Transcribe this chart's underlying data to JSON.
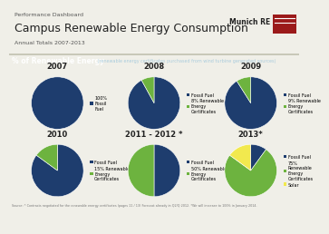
{
  "title_small": "Performance Dashboard",
  "title_main": "Campus Renewable Energy Consumption",
  "title_sub": "Annual Totals 2007-2013",
  "section_label": "% of Renewable Energy",
  "section_sublabel": " (renewable energy certificates purchased from wind turbine generated sources)",
  "background": "#f0efe8",
  "header_bg": "#f0efe8",
  "section_bar_color": "#1e3d6e",
  "charts": [
    {
      "year": "2007",
      "slices": [
        100,
        0,
        0
      ],
      "colors": [
        "#1e3d6e",
        "#6db33f",
        "#f2e94e"
      ],
      "rec_label": "100%\nFossil\nFuel",
      "has_rec": false,
      "has_solar": false,
      "fossil_only": true
    },
    {
      "year": "2008",
      "slices": [
        92,
        8,
        0
      ],
      "colors": [
        "#1e3d6e",
        "#6db33f",
        "#f2e94e"
      ],
      "rec_label": "8% Renewable\nEnergy\nCertificates",
      "has_rec": true,
      "has_solar": false,
      "fossil_only": false
    },
    {
      "year": "2009",
      "slices": [
        91,
        9,
        0
      ],
      "colors": [
        "#1e3d6e",
        "#6db33f",
        "#f2e94e"
      ],
      "rec_label": "9% Renewable\nEnergy\nCertificates",
      "has_rec": true,
      "has_solar": false,
      "fossil_only": false
    },
    {
      "year": "2010",
      "slices": [
        85,
        15,
        0
      ],
      "colors": [
        "#1e3d6e",
        "#6db33f",
        "#f2e94e"
      ],
      "rec_label": "15% Renewable\nEnergy\nCertificates",
      "has_rec": true,
      "has_solar": false,
      "fossil_only": false
    },
    {
      "year": "2011 - 2012 *",
      "slices": [
        50,
        50,
        0
      ],
      "colors": [
        "#1e3d6e",
        "#6db33f",
        "#f2e94e"
      ],
      "rec_label": "50% Renewable\nEnergy\nCertificates",
      "has_rec": true,
      "has_solar": false,
      "fossil_only": false
    },
    {
      "year": "2013*",
      "slices": [
        10,
        75,
        15
      ],
      "colors": [
        "#1e3d6e",
        "#6db33f",
        "#f2e94e"
      ],
      "rec_label": "75%\nRenewable\nEnergy\nCertificates",
      "has_rec": true,
      "has_solar": true,
      "fossil_only": false
    }
  ],
  "source_text": "Source: * Contracts negotiated for the renewable energy certificates (pages 11 / 13) Forecast already in Q2/Q 2012. *We will increase to 100% in January 2014.",
  "fossil_color": "#1e3d6e",
  "rec_color": "#6db33f",
  "solar_color": "#f2e94e",
  "text_dark": "#222222",
  "text_gray": "#555555",
  "title_fontsize": 9,
  "small_fontsize": 4.5,
  "year_fontsize": 6,
  "legend_fontsize": 3.5,
  "section_fontsize": 5.5,
  "section_sub_fontsize": 3.5
}
